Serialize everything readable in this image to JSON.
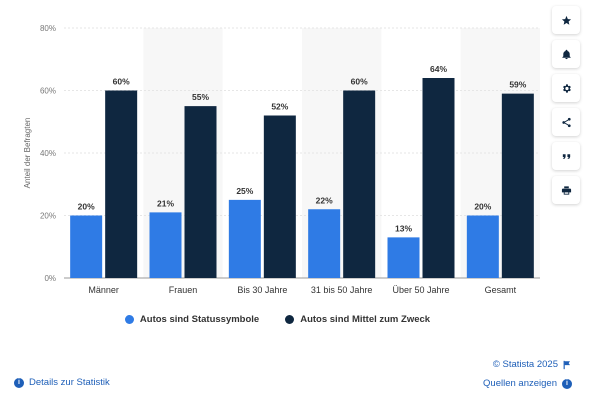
{
  "chart_data": {
    "type": "bar",
    "categories": [
      "Männer",
      "Frauen",
      "Bis 30 Jahre",
      "31 bis 50 Jahre",
      "Über 50 Jahre",
      "Gesamt"
    ],
    "series": [
      {
        "name": "Autos sind Statussymbole",
        "values": [
          20,
          21,
          25,
          22,
          13,
          20
        ],
        "color": "#2f7be5"
      },
      {
        "name": "Autos sind Mittel zum Zweck",
        "values": [
          60,
          55,
          52,
          60,
          64,
          59
        ],
        "color": "#0f2740"
      }
    ],
    "ylabel": "Anteil der Befragten",
    "ylim": [
      0,
      80
    ],
    "yticks": [
      "0%",
      "20%",
      "40%",
      "60%",
      "80%"
    ],
    "grid": true,
    "legend_position": "bottom"
  },
  "legend": {
    "series1": "Autos sind Statussymbole",
    "series2": "Autos sind Mittel zum Zweck"
  },
  "toolbar": {
    "icons": [
      "star-icon",
      "bell-icon",
      "gear-icon",
      "share-icon",
      "quote-icon",
      "print-icon"
    ]
  },
  "footer": {
    "copyright": "© Statista 2025",
    "details": "Details zur Statistik",
    "sources": "Quellen anzeigen"
  },
  "colors": {
    "series1": "#2f7be5",
    "series2": "#0f2740",
    "link": "#1e5fb8"
  }
}
